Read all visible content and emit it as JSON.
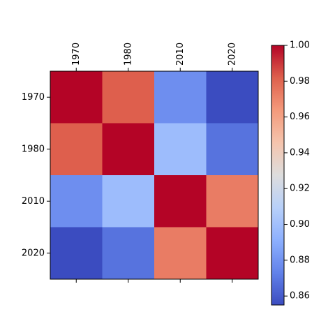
{
  "chart_data": {
    "type": "heatmap",
    "title": "",
    "x_categories": [
      "1970",
      "1980",
      "2010",
      "2020"
    ],
    "y_categories": [
      "1970",
      "1980",
      "2010",
      "2020"
    ],
    "x_tick_position": "top",
    "matrix": [
      [
        1.0,
        0.982,
        0.878,
        0.855
      ],
      [
        0.982,
        1.0,
        0.898,
        0.868
      ],
      [
        0.878,
        0.898,
        1.0,
        0.973
      ],
      [
        0.855,
        0.868,
        0.973,
        1.0
      ]
    ],
    "colormap": "coolwarm",
    "colorbar": {
      "range": [
        0.855,
        1.0
      ],
      "ticks": [
        0.86,
        0.88,
        0.9,
        0.92,
        0.94,
        0.96,
        0.98,
        1.0
      ],
      "tick_labels": [
        "0.86",
        "0.88",
        "0.90",
        "0.92",
        "0.94",
        "0.96",
        "0.98",
        "1.00"
      ]
    },
    "grid": false,
    "legend": "none"
  }
}
